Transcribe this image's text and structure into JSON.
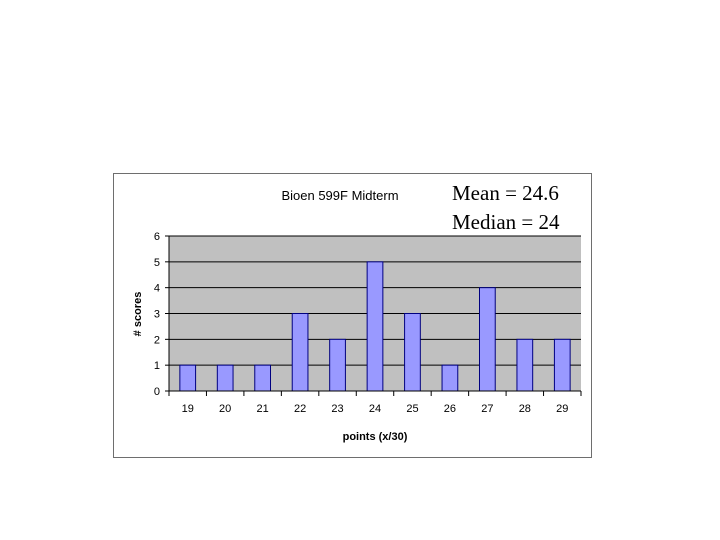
{
  "chart_data": {
    "type": "bar",
    "title": "Bioen 599F Midterm",
    "xlabel": "points (x/30)",
    "ylabel": "# scores",
    "categories": [
      "19",
      "20",
      "21",
      "22",
      "23",
      "24",
      "25",
      "26",
      "27",
      "28",
      "29"
    ],
    "values": [
      1,
      1,
      1,
      3,
      2,
      5,
      3,
      1,
      4,
      2,
      2
    ],
    "ylim": [
      0,
      6
    ],
    "yticks": [
      0,
      1,
      2,
      3,
      4,
      5,
      6
    ],
    "grid": true,
    "legend": "none",
    "annotations": [
      "Mean = 24.6",
      "Median = 24"
    ],
    "colors": {
      "bar_fill": "#9999ff",
      "bar_stroke": "#000080",
      "plot_background": "#c0c0c0",
      "gridline": "#000000"
    }
  }
}
